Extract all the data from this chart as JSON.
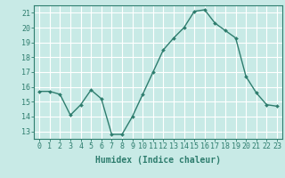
{
  "x": [
    0,
    1,
    2,
    3,
    4,
    5,
    6,
    7,
    8,
    9,
    10,
    11,
    12,
    13,
    14,
    15,
    16,
    17,
    18,
    19,
    20,
    21,
    22,
    23
  ],
  "y": [
    15.7,
    15.7,
    15.5,
    14.1,
    14.8,
    15.8,
    15.2,
    12.8,
    12.8,
    14.0,
    15.5,
    17.0,
    18.5,
    19.3,
    20.0,
    21.1,
    21.2,
    20.3,
    19.8,
    19.3,
    16.7,
    15.6,
    14.8,
    14.7
  ],
  "line_color": "#2e7d6e",
  "marker": "D",
  "marker_size": 2.0,
  "linewidth": 1.0,
  "bg_color": "#c8eae6",
  "grid_color": "#ffffff",
  "xlabel": "Humidex (Indice chaleur)",
  "xlabel_fontsize": 7,
  "tick_fontsize": 6,
  "ylim": [
    12.5,
    21.5
  ],
  "yticks": [
    13,
    14,
    15,
    16,
    17,
    18,
    19,
    20,
    21
  ],
  "xlim": [
    -0.5,
    23.5
  ],
  "xticks": [
    0,
    1,
    2,
    3,
    4,
    5,
    6,
    7,
    8,
    9,
    10,
    11,
    12,
    13,
    14,
    15,
    16,
    17,
    18,
    19,
    20,
    21,
    22,
    23
  ]
}
